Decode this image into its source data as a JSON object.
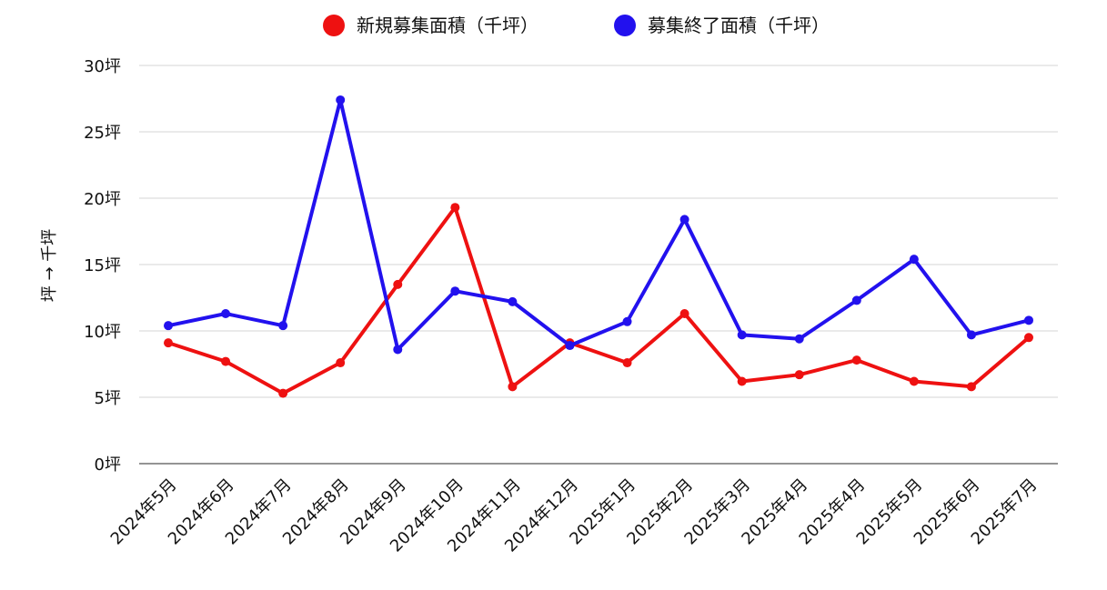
{
  "chart_data": {
    "type": "line",
    "title": "",
    "xlabel": "",
    "ylabel": "坪 → 千坪",
    "ylim": [
      0,
      30
    ],
    "y_ticks": [
      0,
      5,
      10,
      15,
      20,
      25,
      30
    ],
    "y_tick_labels": [
      "0坪",
      "5坪",
      "10坪",
      "15坪",
      "20坪",
      "25坪",
      "30坪"
    ],
    "grid": true,
    "legend_position": "top-center",
    "categories": [
      "2024年5月",
      "2024年6月",
      "2024年7月",
      "2024年8月",
      "2024年9月",
      "2024年10月",
      "2024年11月",
      "2024年12月",
      "2025年1月",
      "2025年2月",
      "2025年3月",
      "2025年4月",
      "2025年4月",
      "2025年5月",
      "2025年6月",
      "2025年7月"
    ],
    "series": [
      {
        "name": "新規募集面積（千坪）",
        "color": "#ee1111",
        "values": [
          9.1,
          7.7,
          5.3,
          7.6,
          13.5,
          19.3,
          5.8,
          9.1,
          7.6,
          11.3,
          6.2,
          6.7,
          7.8,
          6.2,
          5.8,
          9.5
        ]
      },
      {
        "name": "募集終了面積（千坪）",
        "color": "#2211ee",
        "values": [
          10.4,
          11.3,
          10.4,
          27.4,
          8.6,
          13.0,
          12.2,
          8.9,
          10.7,
          18.4,
          9.7,
          9.4,
          12.3,
          15.4,
          9.7,
          10.8
        ]
      }
    ]
  }
}
